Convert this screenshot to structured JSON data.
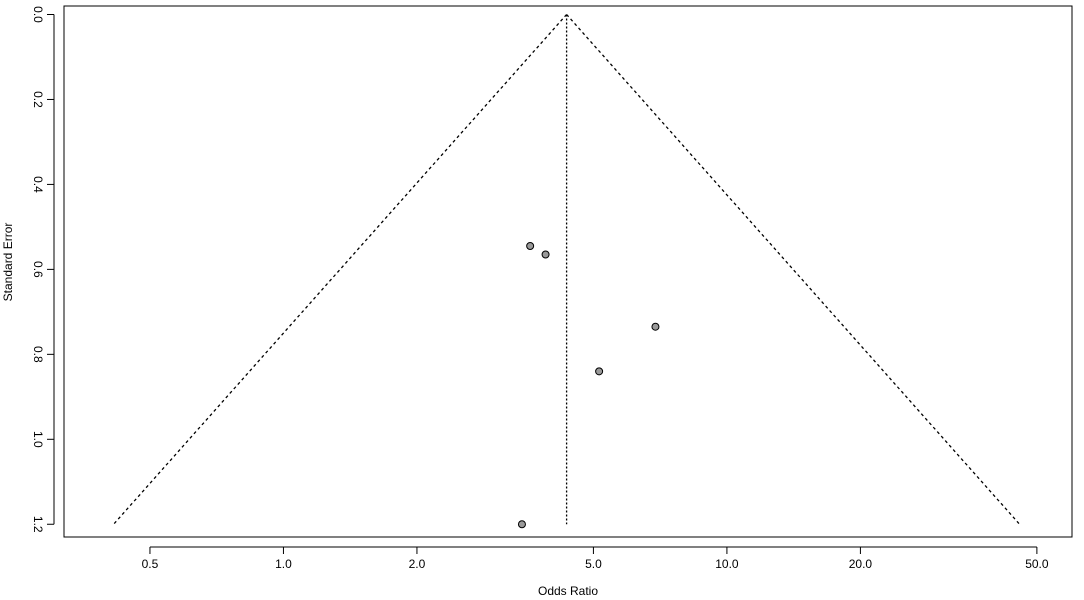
{
  "chart_data": {
    "type": "scatter",
    "title": "",
    "xlabel": "Odds Ratio",
    "ylabel": "Standard Error",
    "x_scale": "log",
    "x_ticks": [
      0.5,
      1.0,
      2.0,
      5.0,
      10.0,
      20.0,
      50.0
    ],
    "x_tick_labels": [
      "0.5",
      "1.0",
      "2.0",
      "5.0",
      "10.0",
      "20.0",
      "50.0"
    ],
    "y_ticks": [
      0.0,
      0.2,
      0.4,
      0.6,
      0.8,
      1.0,
      1.2
    ],
    "y_tick_labels": [
      "0.0",
      "0.2",
      "0.4",
      "0.6",
      "0.8",
      "1.0",
      "1.2"
    ],
    "xlim": [
      0.32,
      60
    ],
    "ylim": [
      1.23,
      -0.02
    ],
    "y_reversed": true,
    "pooled_estimate": 4.35,
    "funnel_se_max": 1.2,
    "points": [
      {
        "x": 3.6,
        "y": 0.545
      },
      {
        "x": 3.9,
        "y": 0.565
      },
      {
        "x": 6.9,
        "y": 0.735
      },
      {
        "x": 5.15,
        "y": 0.84
      },
      {
        "x": 3.45,
        "y": 1.2
      }
    ],
    "grid": false,
    "colors": {
      "point_fill": "#999999",
      "point_stroke": "#000000",
      "line": "#000000"
    }
  }
}
